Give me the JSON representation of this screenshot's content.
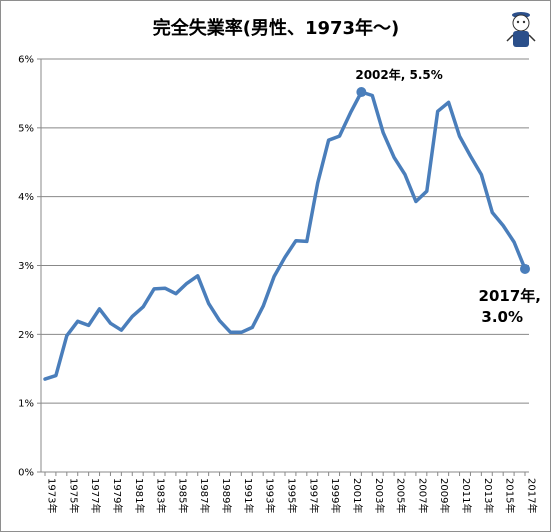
{
  "chart_data": {
    "type": "line",
    "title": "完全失業率(男性、1973年～)",
    "xlabel": "",
    "ylabel": "",
    "ylim": [
      0,
      6
    ],
    "y_ticks": [
      "0%",
      "1%",
      "2%",
      "3%",
      "4%",
      "5%",
      "6%"
    ],
    "x_tick_labels": [
      "1973年",
      "1975年",
      "1977年",
      "1979年",
      "1981年",
      "1983年",
      "1985年",
      "1987年",
      "1989年",
      "1991年",
      "1993年",
      "1995年",
      "1997年",
      "1999年",
      "2001年",
      "2003年",
      "2005年",
      "2007年",
      "2009年",
      "2011年",
      "2013年",
      "2015年",
      "2017年"
    ],
    "grid": true,
    "line_color": "#4a7ebb",
    "series": [
      {
        "x": [
          1973,
          1974,
          1975,
          1976,
          1977,
          1978,
          1979,
          1980,
          1981,
          1982,
          1983,
          1984,
          1985,
          1986,
          1987,
          1988,
          1989,
          1990,
          1991,
          1992,
          1993,
          1994,
          1995,
          1996,
          1997,
          1998,
          1999,
          2000,
          2001,
          2002,
          2003,
          2004,
          2005,
          2006,
          2007,
          2008,
          2009,
          2010,
          2011,
          2012,
          2013,
          2014,
          2015,
          2016,
          2017
        ],
        "values": [
          1.35,
          1.4,
          1.98,
          2.19,
          2.13,
          2.37,
          2.16,
          2.06,
          2.26,
          2.4,
          2.66,
          2.67,
          2.59,
          2.74,
          2.85,
          2.45,
          2.2,
          2.03,
          2.03,
          2.1,
          2.41,
          2.84,
          3.12,
          3.36,
          3.35,
          4.2,
          4.82,
          4.88,
          5.22,
          5.52,
          5.47,
          4.93,
          4.57,
          4.32,
          3.93,
          4.08,
          5.24,
          5.37,
          4.88,
          4.59,
          4.32,
          3.77,
          3.58,
          3.34,
          2.95
        ]
      }
    ],
    "annotations": [
      {
        "text": "2002年, 5.5%",
        "x": 2002,
        "y": 5.52
      },
      {
        "text_line1": "2017年,",
        "text_line2": "3.0%",
        "x": 2017,
        "y": 2.95
      }
    ]
  }
}
